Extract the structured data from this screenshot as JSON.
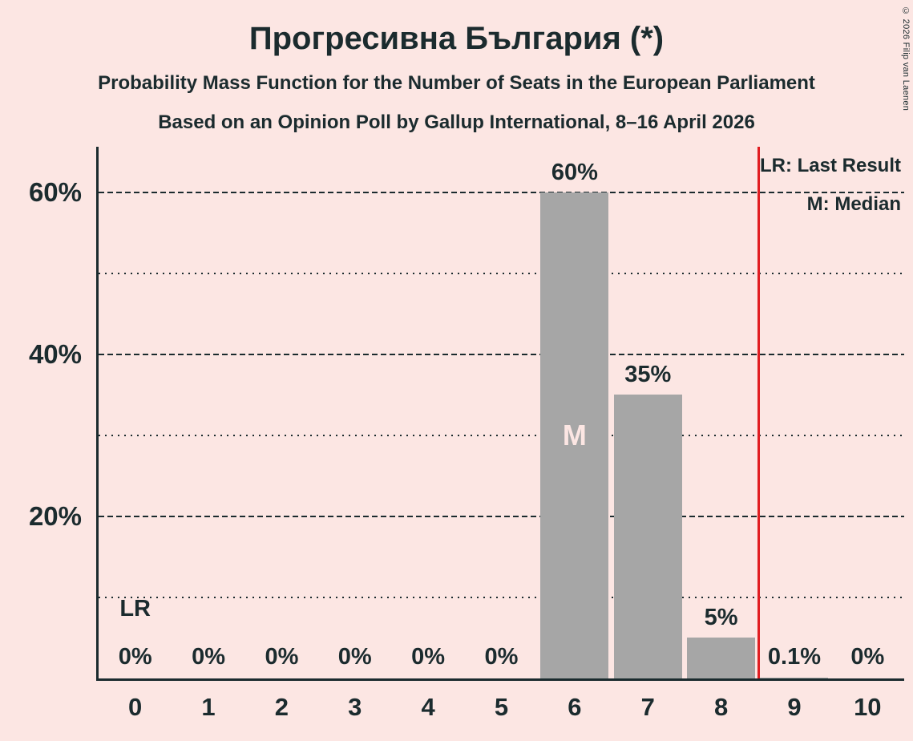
{
  "header": {
    "title": "Прогресивна България (*)",
    "subtitle1": "Probability Mass Function for the Number of Seats in the European Parliament",
    "subtitle2": "Based on an Opinion Poll by Gallup International, 8–16 April 2026"
  },
  "copyright": "© 2026 Filip van Laenen",
  "legend": {
    "lr": "LR: Last Result",
    "m": "M: Median"
  },
  "annotations": {
    "lr_label": "LR",
    "median_label": "M"
  },
  "colors": {
    "background": "#fce6e3",
    "bar": "#a6a6a6",
    "text": "#1b2b2e",
    "last_result_line": "#e11d21",
    "median_label": "#fce6e3"
  },
  "chart_data": {
    "type": "bar",
    "title": "Прогресивна България (*)",
    "categories": [
      "0",
      "1",
      "2",
      "3",
      "4",
      "5",
      "6",
      "7",
      "8",
      "9",
      "10"
    ],
    "values": [
      0,
      0,
      0,
      0,
      0,
      0,
      60,
      35,
      5,
      0.1,
      0
    ],
    "value_labels": [
      "0%",
      "0%",
      "0%",
      "0%",
      "0%",
      "0%",
      "60%",
      "35%",
      "5%",
      "0.1%",
      "0%"
    ],
    "ylim": [
      0,
      65.6
    ],
    "yticks": [
      20,
      40,
      60
    ],
    "ytick_labels": [
      "20%",
      "40%",
      "60%"
    ],
    "minor_gridlines": [
      10,
      30,
      50
    ],
    "median_category": "6",
    "last_result_label_category": "0",
    "last_result_line_between": [
      8,
      9
    ],
    "legend_position": "top-right",
    "grid": true
  }
}
